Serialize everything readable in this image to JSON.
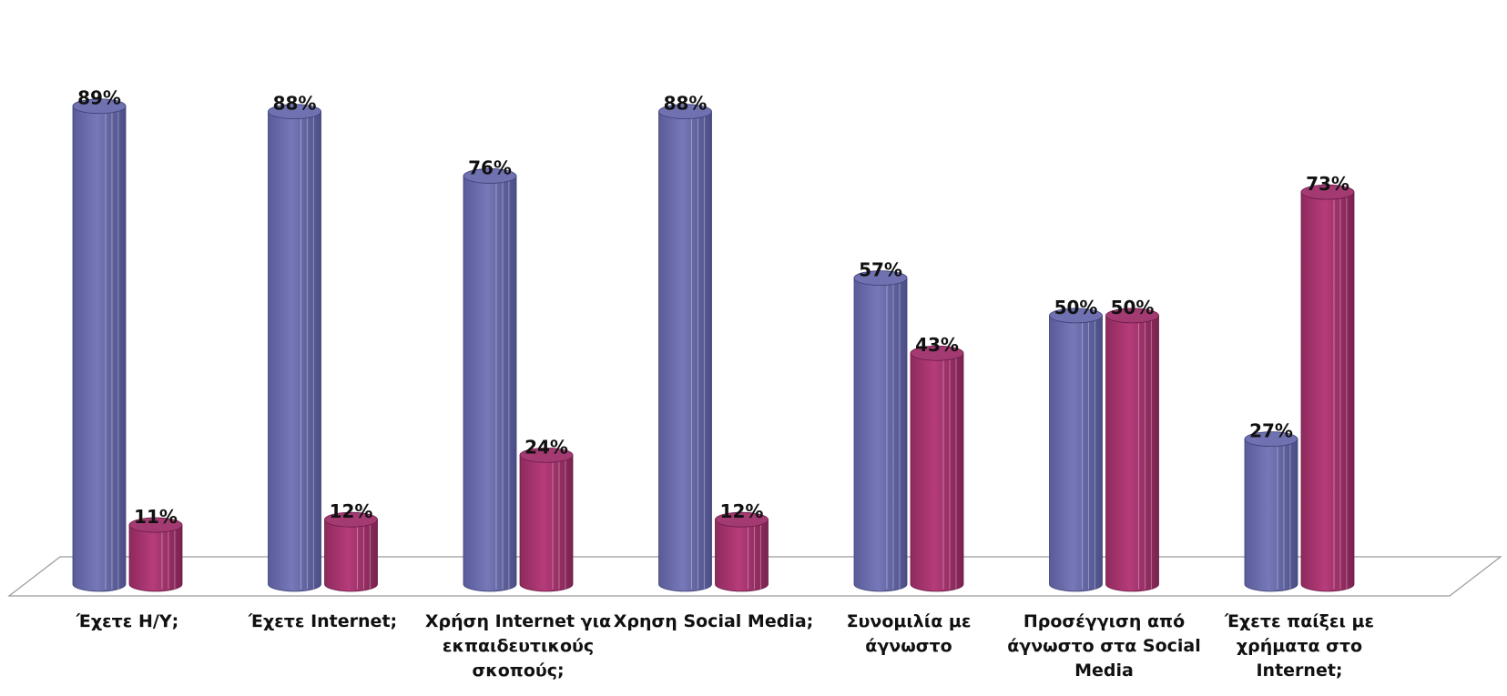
{
  "chart_data": {
    "type": "bar",
    "title": "",
    "xlabel": "",
    "ylabel": "",
    "ylim": [
      0,
      100
    ],
    "grid": false,
    "legend": "none",
    "categories": [
      "Έχετε Η/Υ;",
      "Έχετε Internet;",
      "Χρήση Internet για εκπαιδευτικούς σκοπούς;",
      "Χρηση Social Media;",
      "Συνομιλία με άγνωστο",
      "Προσέγγιση από άγνωστο στα Social Media",
      "Έχετε παίξει με χρήματα στο Internet;"
    ],
    "series": [
      {
        "values": [
          89,
          88,
          76,
          88,
          57,
          50,
          27
        ],
        "color": "#6a6cae",
        "value_labels": [
          "89%",
          "88%",
          "76%",
          "88%",
          "57%",
          "50%",
          "27%"
        ]
      },
      {
        "values": [
          11,
          12,
          24,
          12,
          43,
          50,
          73
        ],
        "color": "#a8326e",
        "value_labels": [
          "11%",
          "12%",
          "24%",
          "12%",
          "43%",
          "50%",
          "73%"
        ]
      }
    ]
  }
}
